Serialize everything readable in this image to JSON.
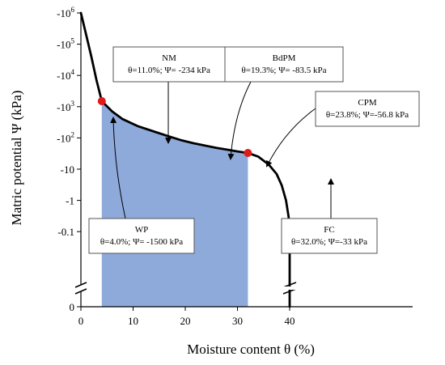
{
  "chart_data": {
    "type": "line",
    "xlabel": "Moisture content θ (%)",
    "ylabel": "Matric potential Ψ (kPa)",
    "xlim": [
      0,
      45
    ],
    "x_ticks": [
      0,
      10,
      20,
      30,
      40
    ],
    "y_scale": "symlog (negative log, broken axis at 0)",
    "y_ticks": [
      {
        "label": "-10",
        "sup": "6",
        "value": -1000000
      },
      {
        "label": "-10",
        "sup": "5",
        "value": -100000
      },
      {
        "label": "-10",
        "sup": "4",
        "value": -10000
      },
      {
        "label": "-10",
        "sup": "3",
        "value": -1000
      },
      {
        "label": "-10",
        "sup": "2",
        "value": -100
      },
      {
        "label": "-10",
        "sup": "",
        "value": -10
      },
      {
        "label": "-1",
        "sup": "",
        "value": -1
      },
      {
        "label": "-0.1",
        "sup": "",
        "value": -0.1
      },
      {
        "label": "0",
        "sup": "",
        "value": 0
      }
    ],
    "curve": {
      "x": [
        0,
        1,
        2,
        3,
        4,
        6,
        8,
        11,
        14,
        17,
        19.3,
        21.5,
        23.8,
        26,
        28,
        30,
        32,
        34,
        36,
        37.5,
        38.5,
        39.3,
        39.8,
        40,
        40,
        40
      ],
      "y": [
        -1000000,
        -200000,
        -40000,
        -7000,
        -1500,
        -700,
        -400,
        -234,
        -160,
        -110,
        -83.5,
        -68,
        -56.8,
        -48,
        -42,
        -37,
        -33,
        -25,
        -14,
        -7,
        -3,
        -1,
        -0.3,
        -0.1,
        -0.05,
        0
      ]
    },
    "shaded_region": {
      "x_from": 4,
      "x_to": 32,
      "fill": "#8eaadb"
    },
    "points": [
      {
        "name": "WP",
        "x": 4,
        "y": -1500,
        "color": "#e01b1b"
      },
      {
        "name": "FC",
        "x": 32,
        "y": -33,
        "color": "#e01b1b"
      }
    ],
    "annotations": [
      {
        "title": "NM",
        "text": "θ=11.0%; Ψ= -234 kPa",
        "x": 11,
        "y": -234
      },
      {
        "title": "BdPM",
        "text": "θ=19.3%; Ψ= -83.5 kPa",
        "x": 19.3,
        "y": -83.5
      },
      {
        "title": "CPM",
        "text": "θ=23.8%; Ψ=-56.8 kPa",
        "x": 23.8,
        "y": -56.8
      },
      {
        "title": "WP",
        "text": "θ=4.0%; Ψ= -1500 kPa",
        "x": 4,
        "y": -1500
      },
      {
        "title": "FC",
        "text": "θ=32.0%; Ψ=-33 kPa",
        "x": 32,
        "y": -33
      }
    ],
    "grid": false,
    "legend": "none"
  }
}
